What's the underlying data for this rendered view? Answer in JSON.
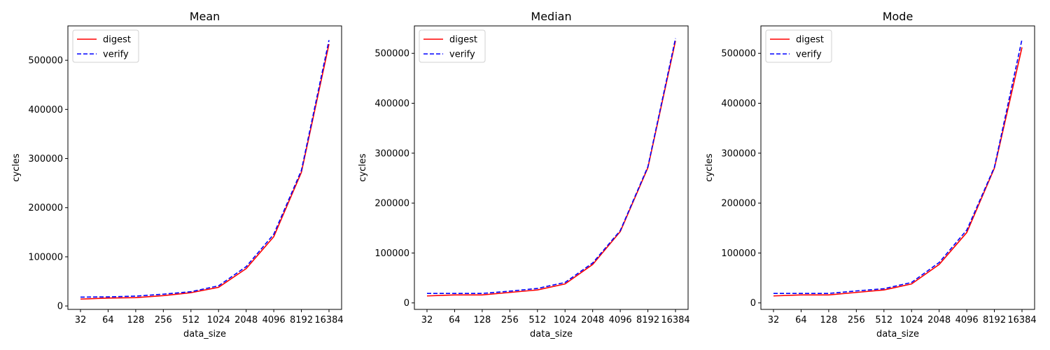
{
  "chart_data": [
    {
      "type": "line",
      "title": "Mean",
      "xlabel": "data_size",
      "ylabel": "cycles",
      "categories": [
        "32",
        "64",
        "128",
        "256",
        "512",
        "1024",
        "2048",
        "4096",
        "8192",
        "16384"
      ],
      "ylim": [
        -7000,
        570000
      ],
      "yticks": [
        0,
        100000,
        200000,
        300000,
        400000,
        500000
      ],
      "legend": "upper-left",
      "grid": false,
      "series": [
        {
          "name": "digest",
          "color": "#ff0000",
          "dash": "solid",
          "values": [
            14000,
            16000,
            17000,
            21000,
            27000,
            38000,
            76000,
            141000,
            272000,
            533000
          ]
        },
        {
          "name": "verify",
          "color": "#0000ff",
          "dash": "dashed",
          "values": [
            18000,
            18500,
            20000,
            24000,
            29000,
            41000,
            80000,
            146000,
            276000,
            541000
          ]
        }
      ]
    },
    {
      "type": "line",
      "title": "Median",
      "xlabel": "data_size",
      "ylabel": "cycles",
      "categories": [
        "32",
        "64",
        "128",
        "256",
        "512",
        "1024",
        "2048",
        "4096",
        "8192",
        "16384"
      ],
      "ylim": [
        -13000,
        555000
      ],
      "yticks": [
        0,
        100000,
        200000,
        300000,
        400000,
        500000
      ],
      "legend": "upper-left",
      "grid": false,
      "series": [
        {
          "name": "digest",
          "color": "#ff0000",
          "dash": "solid",
          "values": [
            14000,
            16000,
            16000,
            21000,
            26000,
            38000,
            77000,
            143000,
            271000,
            525000
          ]
        },
        {
          "name": "verify",
          "color": "#0000ff",
          "dash": "dashed",
          "values": [
            19000,
            19000,
            19000,
            23500,
            29000,
            41000,
            80000,
            145000,
            273000,
            530000
          ]
        }
      ]
    },
    {
      "type": "line",
      "title": "Mode",
      "xlabel": "data_size",
      "ylabel": "cycles",
      "categories": [
        "32",
        "64",
        "128",
        "256",
        "512",
        "1024",
        "2048",
        "4096",
        "8192",
        "16384"
      ],
      "ylim": [
        -13000,
        555000
      ],
      "yticks": [
        0,
        100000,
        200000,
        300000,
        400000,
        500000
      ],
      "legend": "upper-left",
      "grid": false,
      "series": [
        {
          "name": "digest",
          "color": "#ff0000",
          "dash": "solid",
          "values": [
            14000,
            16000,
            16000,
            21000,
            26000,
            38000,
            77000,
            141000,
            270000,
            512000
          ]
        },
        {
          "name": "verify",
          "color": "#0000ff",
          "dash": "dashed",
          "values": [
            19000,
            19000,
            19000,
            24000,
            28500,
            41000,
            81000,
            146000,
            272000,
            528000
          ]
        }
      ]
    }
  ]
}
